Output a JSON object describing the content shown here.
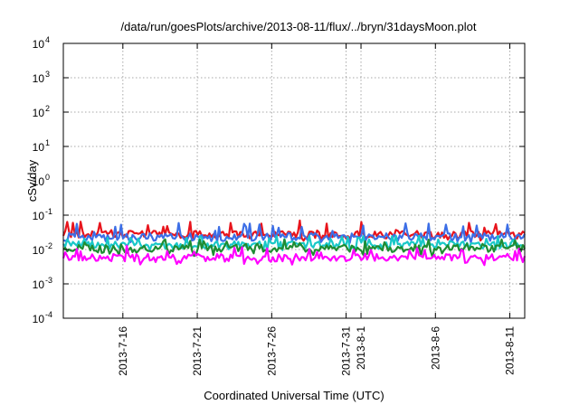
{
  "chart_data": {
    "type": "line",
    "title": "/data/run/goesPlots/archive/2013-08-11/flux/../bryn/31daysMoon.plot",
    "xlabel": "Coordinated Universal Time (UTC)",
    "ylabel": "cSv/day",
    "yscale": "log",
    "ylim": [
      0.0001,
      10000
    ],
    "xlim": [
      "2013-07-12",
      "2013-08-12"
    ],
    "grid": true,
    "y_ticks": [
      {
        "base": "10",
        "exp": "-4",
        "value": 0.0001
      },
      {
        "base": "10",
        "exp": "-3",
        "value": 0.001
      },
      {
        "base": "10",
        "exp": "-2",
        "value": 0.01
      },
      {
        "base": "10",
        "exp": "-1",
        "value": 0.1
      },
      {
        "base": "10",
        "exp": "0",
        "value": 1
      },
      {
        "base": "10",
        "exp": "1",
        "value": 10
      },
      {
        "base": "10",
        "exp": "2",
        "value": 100
      },
      {
        "base": "10",
        "exp": "3",
        "value": 1000
      },
      {
        "base": "10",
        "exp": "4",
        "value": 10000
      }
    ],
    "x_ticks": [
      {
        "label": "2013-7-16",
        "date": "2013-07-16"
      },
      {
        "label": "2013-7-21",
        "date": "2013-07-21"
      },
      {
        "label": "2013-7-26",
        "date": "2013-07-26"
      },
      {
        "label": "2013-7-31",
        "date": "2013-07-31"
      },
      {
        "label": "2013-8-1",
        "date": "2013-08-01"
      },
      {
        "label": "2013-8-6",
        "date": "2013-08-06"
      },
      {
        "label": "2013-8-11",
        "date": "2013-08-11"
      }
    ],
    "series": [
      {
        "color": "#e8141c",
        "typical": 0.028,
        "low": 0.018,
        "high": 0.07
      },
      {
        "color": "#3c6ee6",
        "typical": 0.024,
        "low": 0.015,
        "high": 0.06
      },
      {
        "color": "#19c8c8",
        "typical": 0.014,
        "low": 0.009,
        "high": 0.025
      },
      {
        "color": "#1e8c32",
        "typical": 0.011,
        "low": 0.006,
        "high": 0.02
      },
      {
        "color": "#ff00ff",
        "typical": 0.006,
        "low": 0.0035,
        "high": 0.013
      }
    ]
  }
}
